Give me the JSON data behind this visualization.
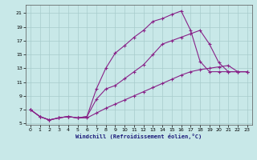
{
  "bg_color": "#c8e8e8",
  "grid_color": "#a8cccc",
  "line_color": "#882288",
  "xlabel": "Windchill (Refroidissement éolien,°C)",
  "xlim": [
    -0.5,
    23.5
  ],
  "ylim": [
    4.8,
    22.2
  ],
  "yticks": [
    5,
    7,
    9,
    11,
    13,
    15,
    17,
    19,
    21
  ],
  "xticks": [
    0,
    1,
    2,
    3,
    4,
    5,
    6,
    7,
    8,
    9,
    10,
    11,
    12,
    13,
    14,
    15,
    16,
    17,
    18,
    19,
    20,
    21,
    22,
    23
  ],
  "line1_x": [
    0,
    1,
    2,
    3,
    4,
    5,
    6,
    7,
    8,
    9,
    10,
    11,
    12,
    13,
    14,
    15,
    16,
    17,
    18,
    19,
    20,
    21,
    22,
    23
  ],
  "line1_y": [
    7.0,
    6.0,
    5.5,
    5.8,
    6.0,
    5.8,
    6.0,
    10.0,
    13.0,
    15.2,
    16.3,
    17.5,
    18.5,
    19.8,
    20.2,
    20.8,
    21.3,
    18.5,
    14.0,
    12.5,
    12.5,
    12.5,
    12.5,
    12.5
  ],
  "line2_x": [
    0,
    1,
    2,
    3,
    4,
    5,
    6,
    7,
    8,
    9,
    10,
    11,
    12,
    13,
    14,
    15,
    16,
    17,
    18,
    19,
    20,
    21,
    22,
    23
  ],
  "line2_y": [
    7.0,
    6.0,
    5.5,
    5.8,
    6.0,
    5.8,
    6.0,
    8.5,
    10.0,
    10.5,
    11.5,
    12.5,
    13.5,
    15.0,
    16.5,
    17.0,
    17.5,
    18.0,
    18.5,
    16.5,
    13.8,
    12.5,
    12.5,
    12.5
  ],
  "line3_x": [
    0,
    1,
    2,
    3,
    4,
    5,
    6,
    7,
    8,
    9,
    10,
    11,
    12,
    13,
    14,
    15,
    16,
    17,
    18,
    19,
    20,
    21,
    22,
    23
  ],
  "line3_y": [
    7.0,
    6.0,
    5.5,
    5.8,
    6.0,
    5.8,
    5.8,
    6.5,
    7.2,
    7.8,
    8.4,
    9.0,
    9.6,
    10.2,
    10.8,
    11.4,
    12.0,
    12.5,
    12.8,
    13.0,
    13.2,
    13.4,
    12.5,
    12.5
  ]
}
